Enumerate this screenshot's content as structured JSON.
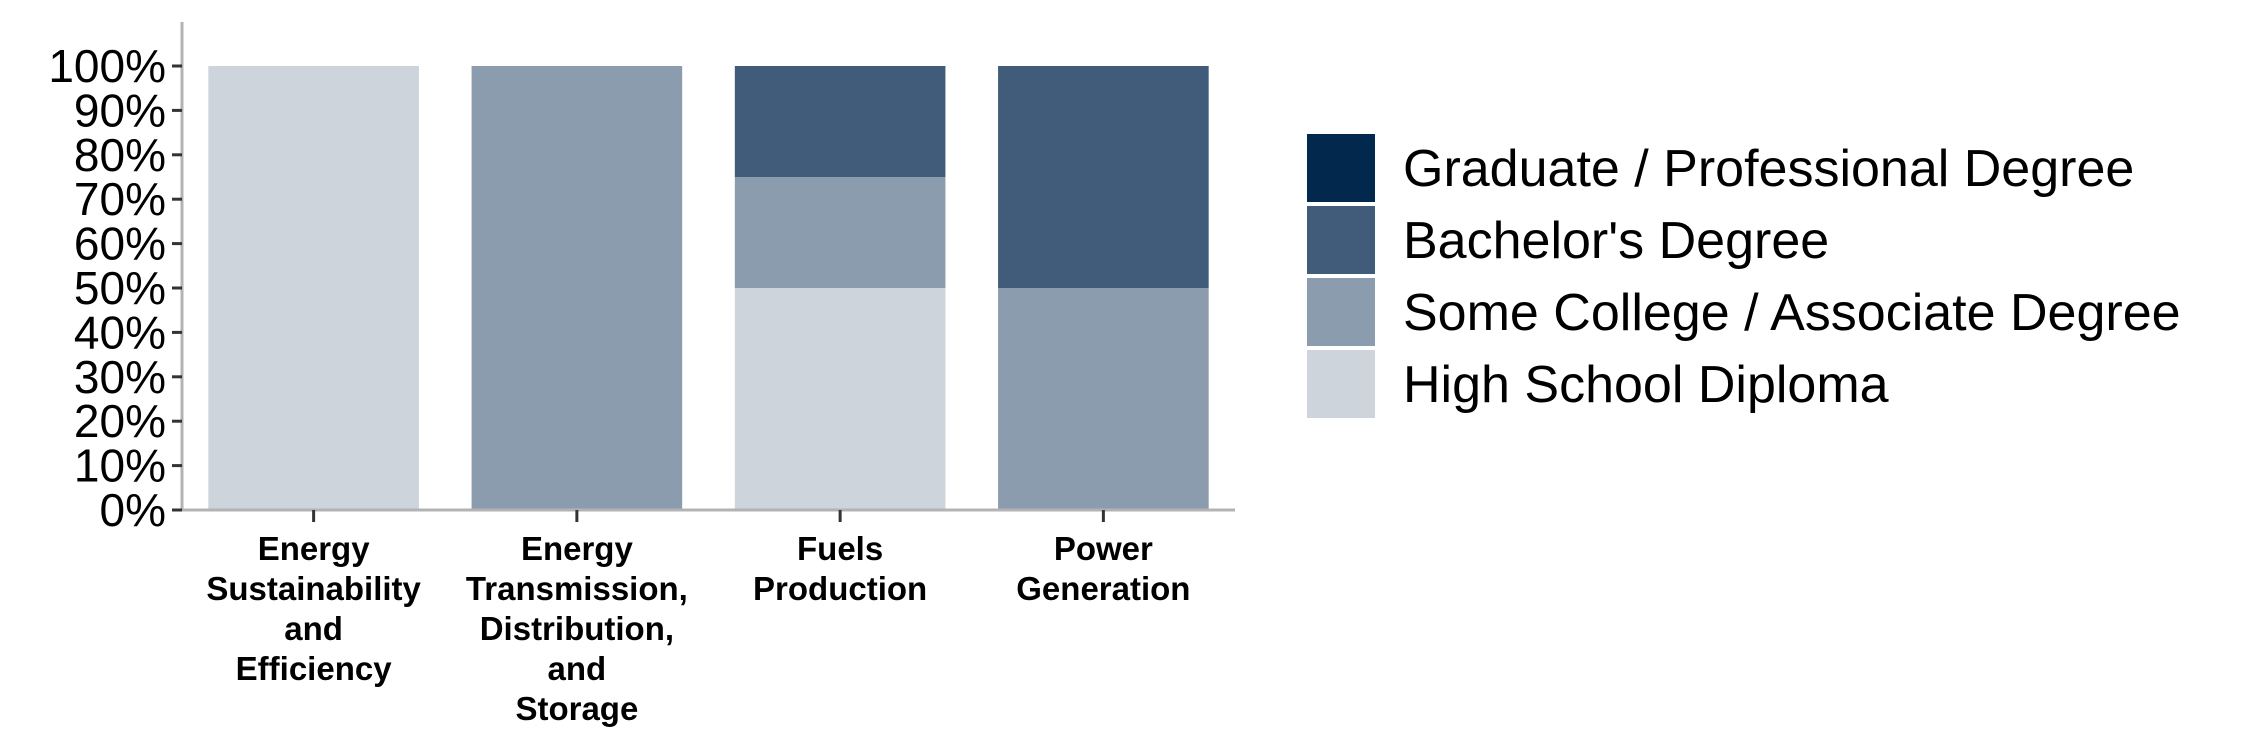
{
  "chart_data": {
    "type": "bar",
    "stacked": true,
    "orientation": "vertical",
    "title": "",
    "xlabel": "",
    "ylabel": "",
    "ylim": [
      0,
      100
    ],
    "y_ticks": [
      "0%",
      "10%",
      "20%",
      "30%",
      "40%",
      "50%",
      "60%",
      "70%",
      "80%",
      "90%",
      "100%"
    ],
    "categories": [
      [
        "Energy",
        "Sustainability",
        "and",
        "Efficiency"
      ],
      [
        "Energy",
        "Transmission,",
        "Distribution,",
        "and",
        "Storage"
      ],
      [
        "Fuels",
        "Production"
      ],
      [
        "Power",
        "Generation"
      ]
    ],
    "series": [
      {
        "name": "High School Diploma",
        "color": "#cdd4dc",
        "values": [
          100,
          0,
          50,
          0
        ]
      },
      {
        "name": "Some College / Associate Degree",
        "color": "#8b9cae",
        "values": [
          0,
          100,
          25,
          50
        ]
      },
      {
        "name": "Bachelor's Degree",
        "color": "#415c7b",
        "values": [
          0,
          0,
          25,
          50
        ]
      },
      {
        "name": "Graduate / Professional Degree",
        "color": "#02284e",
        "values": [
          0,
          0,
          0,
          0
        ]
      }
    ],
    "legend_order": [
      "Graduate / Professional Degree",
      "Bachelor's Degree",
      "Some College / Associate Degree",
      "High School Diploma"
    ],
    "legend_position": "right",
    "grid": false
  }
}
